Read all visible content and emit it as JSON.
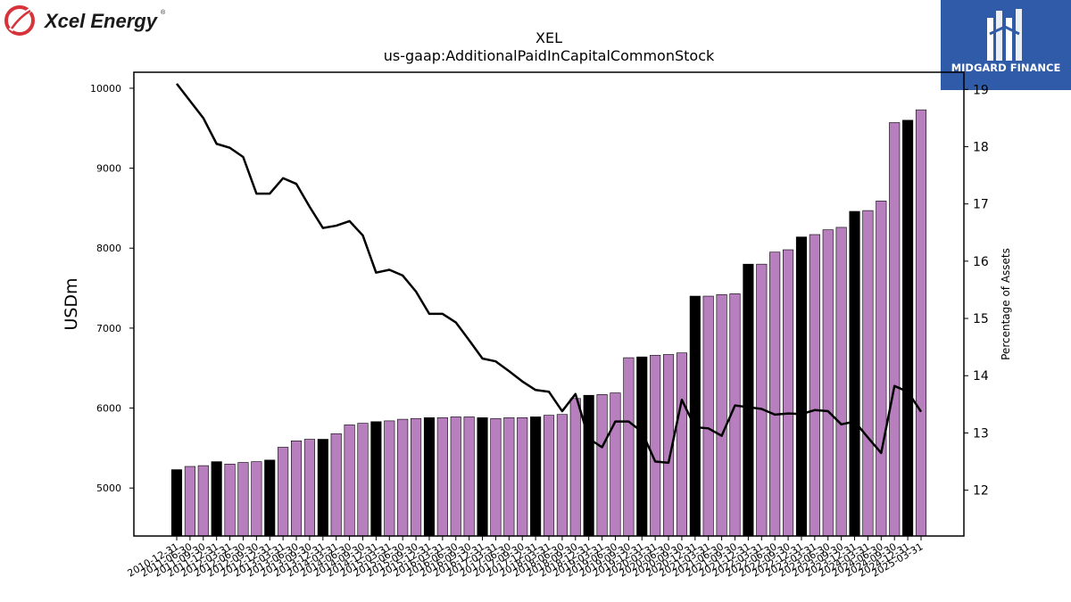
{
  "branding": {
    "left_logo_text": "Xcel Energy",
    "left_logo_trademark": "®",
    "right_logo_text": "MIDGARD FINANCE",
    "left_logo_color": "#d6333a",
    "right_logo_bg": "#2f5ba8"
  },
  "chart_data": {
    "type": "bar",
    "title": "XEL",
    "subtitle": "us-gaap:AdditionalPaidInCapitalCommonStock",
    "ylabel": "USDm",
    "y2label": "Percentage of Assets",
    "ylim": [
      4400,
      10200
    ],
    "y2lim": [
      11.2,
      19.3
    ],
    "yticks": [
      5000,
      6000,
      7000,
      8000,
      9000,
      10000
    ],
    "y2ticks": [
      12,
      13,
      14,
      15,
      16,
      17,
      18,
      19
    ],
    "grid": false,
    "colors": {
      "bar_fy": "#000000",
      "bar_q": "#b77fbd",
      "line": "#000000"
    },
    "categories": [
      "2010-12-31",
      "2011-06-30",
      "2011-09-30",
      "2011-12-31",
      "2012-03-31",
      "2012-06-30",
      "2012-09-30",
      "2012-12-31",
      "2013-03-31",
      "2013-06-30",
      "2013-09-30",
      "2013-12-31",
      "2014-03-31",
      "2014-06-30",
      "2014-09-30",
      "2014-12-31",
      "2015-03-31",
      "2015-06-30",
      "2015-09-30",
      "2015-12-31",
      "2016-03-31",
      "2016-06-30",
      "2016-09-30",
      "2016-12-31",
      "2017-03-31",
      "2017-06-30",
      "2017-09-30",
      "2017-12-31",
      "2018-03-31",
      "2018-06-30",
      "2018-09-30",
      "2018-12-31",
      "2019-03-31",
      "2019-06-30",
      "2019-09-30",
      "2019-12-31",
      "2020-03-31",
      "2020-06-30",
      "2020-09-30",
      "2020-12-31",
      "2021-03-31",
      "2021-06-30",
      "2021-09-30",
      "2021-12-31",
      "2022-03-31",
      "2022-06-30",
      "2022-09-30",
      "2022-12-31",
      "2023-03-31",
      "2023-06-30",
      "2023-09-30",
      "2023-12-31",
      "2024-03-31",
      "2024-06-30",
      "2024-09-30",
      "2024-12-31",
      "2025-03-31"
    ],
    "series": [
      {
        "type": "bar",
        "values": [
          5230,
          5270,
          5280,
          5330,
          5300,
          5320,
          5330,
          5350,
          5510,
          5590,
          5610,
          5610,
          5680,
          5790,
          5810,
          5830,
          5840,
          5860,
          5870,
          5880,
          5880,
          5890,
          5890,
          5880,
          5870,
          5880,
          5880,
          5890,
          5910,
          5920,
          6120,
          6160,
          6170,
          6190,
          6630,
          6640,
          6660,
          6670,
          6690,
          7400,
          7400,
          7420,
          7430,
          7800,
          7800,
          7950,
          7980,
          8140,
          8170,
          8230,
          8260,
          8460,
          8470,
          8590,
          9570,
          9600,
          9730
        ],
        "fiscal_year_end": [
          true,
          false,
          false,
          true,
          false,
          false,
          false,
          true,
          false,
          false,
          false,
          true,
          false,
          false,
          false,
          true,
          false,
          false,
          false,
          true,
          false,
          false,
          false,
          true,
          false,
          false,
          false,
          true,
          false,
          false,
          false,
          true,
          false,
          false,
          false,
          true,
          false,
          false,
          false,
          true,
          false,
          false,
          false,
          true,
          false,
          false,
          false,
          true,
          false,
          false,
          false,
          true,
          false,
          false,
          false,
          true,
          false
        ]
      },
      {
        "type": "line",
        "axis": "right",
        "values": [
          19.1,
          18.8,
          18.5,
          18.05,
          17.98,
          17.82,
          17.18,
          17.18,
          17.45,
          17.35,
          16.95,
          16.58,
          16.62,
          16.7,
          16.45,
          15.8,
          15.85,
          15.75,
          15.47,
          15.08,
          15.08,
          14.93,
          14.62,
          14.3,
          14.25,
          14.08,
          13.9,
          13.75,
          13.72,
          13.38,
          13.68,
          12.9,
          12.75,
          13.2,
          13.2,
          13.02,
          12.5,
          12.48,
          13.58,
          13.1,
          13.08,
          12.95,
          13.48,
          13.45,
          13.42,
          13.32,
          13.34,
          13.33,
          13.4,
          13.38,
          13.15,
          13.2,
          12.92,
          12.65,
          13.82,
          13.72,
          13.37
        ]
      }
    ]
  }
}
